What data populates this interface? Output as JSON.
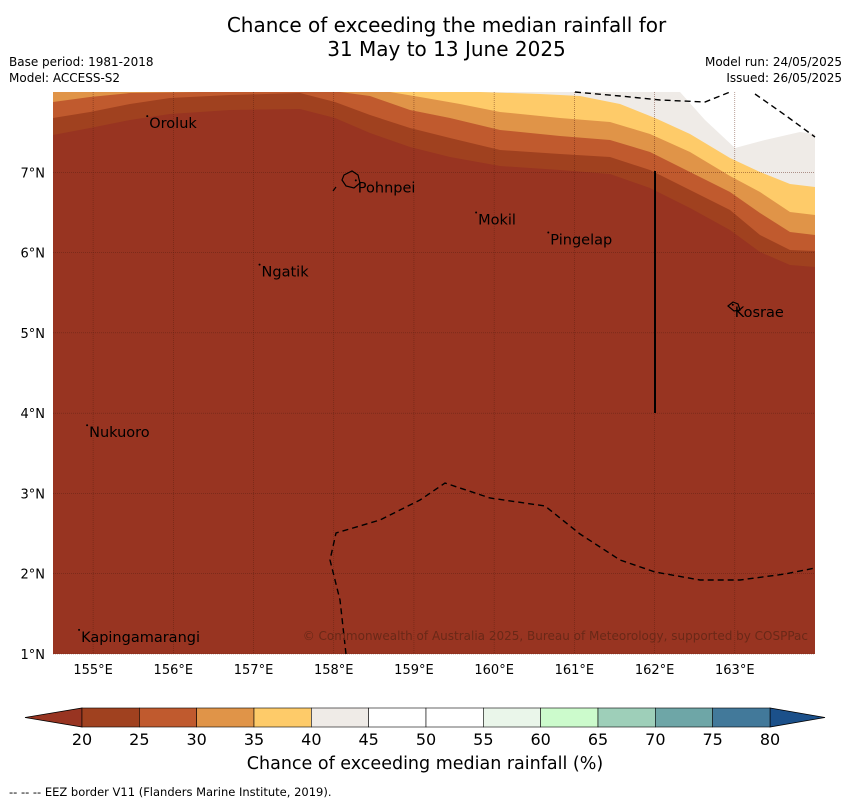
{
  "title_line1": "Chance of exceeding the median rainfall for",
  "title_line2": "31 May to 13 June 2025",
  "meta": {
    "base_period": "Base period: 1981-2018",
    "model": "Model: ACCESS-S2",
    "model_run": "Model run: 24/05/2025",
    "issued": "Issued: 26/05/2025"
  },
  "map": {
    "lon_ticks": [
      155,
      156,
      157,
      158,
      159,
      160,
      161,
      162,
      163
    ],
    "lat_ticks": [
      1,
      2,
      3,
      4,
      5,
      6,
      7
    ],
    "lon_labels": [
      "155°E",
      "156°E",
      "157°E",
      "158°E",
      "159°E",
      "160°E",
      "161°E",
      "162°E",
      "163°E"
    ],
    "lat_labels": [
      "1°N",
      "2°N",
      "3°N",
      "4°N",
      "5°N",
      "6°N",
      "7°N"
    ],
    "lon_range": [
      154.5,
      164.0
    ],
    "lat_range": [
      1.0,
      8.0
    ],
    "places": [
      {
        "name": "Oroluk",
        "lon": 155.7,
        "lat": 7.65
      },
      {
        "name": "Pohnpei",
        "lon": 158.3,
        "lat": 6.85
      },
      {
        "name": "Mokil",
        "lon": 159.8,
        "lat": 6.45
      },
      {
        "name": "Pingelap",
        "lon": 160.7,
        "lat": 6.2
      },
      {
        "name": "Ngatik",
        "lon": 157.1,
        "lat": 5.8
      },
      {
        "name": "Kosrae",
        "lon": 163.0,
        "lat": 5.3
      },
      {
        "name": "Nukuoro",
        "lon": 154.95,
        "lat": 3.8
      },
      {
        "name": "Kapingamarangi",
        "lon": 154.85,
        "lat": 1.25
      }
    ],
    "copyright": "© Commonwealth of Australia 2025, Bureau of Meteorology, supported by COSPPac"
  },
  "colorbar": {
    "ticks": [
      "20",
      "25",
      "30",
      "35",
      "40",
      "45",
      "50",
      "55",
      "60",
      "65",
      "70",
      "75",
      "80"
    ],
    "colors": [
      "#a0411f",
      "#c05a2e",
      "#e09448",
      "#fecb69",
      "#efebe7",
      "#ffffff",
      "#ffffff",
      "#eaf6ea",
      "#ccfbcc",
      "#9ecfb9",
      "#6ea6a7",
      "#42799a"
    ],
    "low_color": "#983421",
    "high_color": "#1b508a",
    "label": "Chance of exceeding median rainfall (%)"
  },
  "footer": "--  --  -- EEZ border V11 (Flanders Marine Institute, 2019)."
}
